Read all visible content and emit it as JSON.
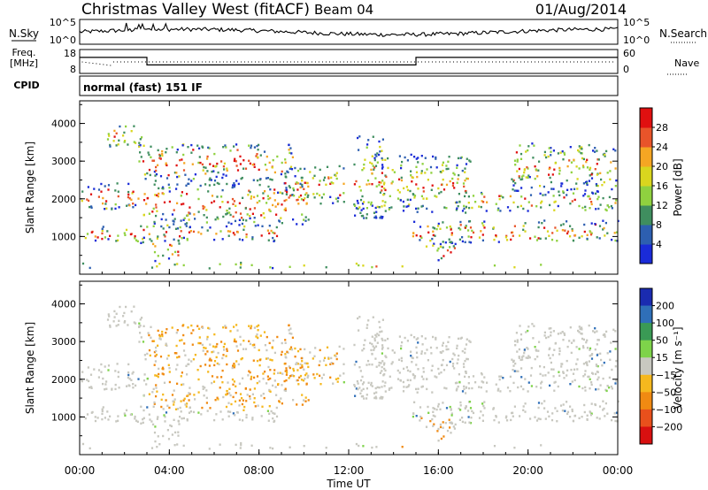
{
  "header": {
    "station": "Christmas Valley West (fitACF)",
    "beam": "Beam 04",
    "date": "01/Aug/2014"
  },
  "left_labels": {
    "nsky": "N.Sky",
    "freq": "Freq.",
    "freq_unit": "[MHz]",
    "cpid": "CPID"
  },
  "right_labels": {
    "nsearch": "N.Search",
    "nave": "Nave"
  },
  "cpid_name": "normal (fast) 151 IF",
  "chart_data": [
    {
      "type": "line",
      "name_label": "N.Sky / N.Search",
      "y_ticks_left": [
        "10^5",
        "10^0"
      ],
      "y_ticks_right": [
        "10^5",
        "10^0"
      ]
    },
    {
      "type": "line",
      "name_label": "Freq. / Nave",
      "y_ticks_left": [
        "18",
        "8"
      ],
      "y_ticks_right": [
        "60",
        "0"
      ],
      "freq_steps": [
        {
          "t0": 0.0,
          "t1": 3.0,
          "value": 15.0
        },
        {
          "t0": 3.0,
          "t1": 15.0,
          "value": 11.3
        },
        {
          "t0": 15.0,
          "t1": 24.0,
          "value": 15.0
        }
      ]
    },
    {
      "type": "heatmap",
      "parameter": "Power",
      "ylabel": "Slant Range [km]",
      "y_ticks": [
        "1000",
        "2000",
        "3000",
        "4000"
      ],
      "colorbar_label": "Power [dB]",
      "colorbar_ticks": [
        "4",
        "8",
        "12",
        "16",
        "20",
        "24",
        "28"
      ],
      "colorbar_colors": [
        "#1a2bd8",
        "#2d5fb0",
        "#3f8e5f",
        "#8fd13f",
        "#d9d61e",
        "#f5a623",
        "#e8542a",
        "#e01010"
      ]
    },
    {
      "type": "heatmap",
      "parameter": "Velocity",
      "ylabel": "Slant Range [km]",
      "y_ticks": [
        "1000",
        "2000",
        "3000",
        "4000"
      ],
      "colorbar_label": "Velocity [m s⁻¹]",
      "colorbar_ticks": [
        "200",
        "100",
        "50",
        "15",
        "−15",
        "−50",
        "−100",
        "−200"
      ],
      "colorbar_colors": [
        "#1a2bb0",
        "#2f6fb8",
        "#3a9a55",
        "#7ed34a",
        "#c8c8c0",
        "#f5b81e",
        "#f08a12",
        "#e8501c",
        "#d81010"
      ]
    }
  ],
  "x_axis": {
    "ticks": [
      "00:00",
      "04:00",
      "08:00",
      "12:00",
      "16:00",
      "20:00",
      "00:00"
    ],
    "label": "Time UT"
  },
  "scatter_regions": [
    {
      "t0": 0.0,
      "t1": 2.6,
      "r0": 1750,
      "r1": 2450,
      "core": 0.75
    },
    {
      "t0": 0.2,
      "t1": 3.0,
      "r0": 850,
      "r1": 1300,
      "core": 0.3
    },
    {
      "t0": 1.2,
      "t1": 2.8,
      "r0": 3400,
      "r1": 4050,
      "core": 0.05
    },
    {
      "t0": 2.6,
      "t1": 9.5,
      "r0": 2500,
      "r1": 3500,
      "core": 0.5
    },
    {
      "t0": 2.8,
      "t1": 10.2,
      "r0": 1350,
      "r1": 2450,
      "core": 0.55
    },
    {
      "t0": 2.8,
      "t1": 9.0,
      "r0": 900,
      "r1": 1350,
      "core": 0.45
    },
    {
      "t0": 3.2,
      "t1": 4.4,
      "r0": 350,
      "r1": 950,
      "core": 0.7
    },
    {
      "t0": 9.0,
      "t1": 11.8,
      "r0": 1900,
      "r1": 2900,
      "core": 0.3
    },
    {
      "t0": 12.2,
      "t1": 13.6,
      "r0": 1500,
      "r1": 3700,
      "core": 0.05
    },
    {
      "t0": 13.0,
      "t1": 17.4,
      "r0": 1650,
      "r1": 3200,
      "core": 0.1
    },
    {
      "t0": 14.8,
      "t1": 24.0,
      "r0": 850,
      "r1": 1450,
      "core": 0.45
    },
    {
      "t0": 15.4,
      "t1": 16.8,
      "r0": 350,
      "r1": 900,
      "core": 0.6
    },
    {
      "t0": 17.0,
      "t1": 24.0,
      "r0": 1700,
      "r1": 2250,
      "core": 0.25
    },
    {
      "t0": 19.2,
      "t1": 24.0,
      "r0": 2250,
      "r1": 3500,
      "core": 0.35
    },
    {
      "t0": 0.0,
      "t1": 24.0,
      "r0": 180,
      "r1": 330,
      "core": 0.05
    }
  ]
}
